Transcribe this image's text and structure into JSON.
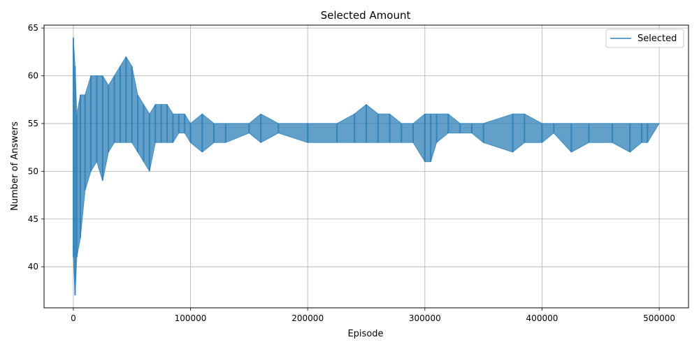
{
  "chart_data": {
    "type": "line",
    "title": "Selected Amount",
    "xlabel": "Episode",
    "ylabel": "Number of Answers",
    "xlim": [
      -25000,
      525000
    ],
    "ylim": [
      35.7,
      65.3
    ],
    "xticks": [
      0,
      100000,
      200000,
      300000,
      400000,
      500000
    ],
    "xtick_labels": [
      "0",
      "100000",
      "200000",
      "300000",
      "400000",
      "500000"
    ],
    "yticks": [
      40,
      45,
      50,
      55,
      60,
      65
    ],
    "ytick_labels": [
      "40",
      "45",
      "50",
      "55",
      "60",
      "65"
    ],
    "grid": true,
    "legend": {
      "position": "top-right",
      "entries": [
        "Selected"
      ]
    },
    "line_color": "#1f77b4",
    "series": [
      {
        "name": "Selected",
        "x": [
          0,
          1500,
          3000,
          6000,
          10000,
          15000,
          20000,
          25000,
          30000,
          35000,
          40000,
          45000,
          50000,
          55000,
          60000,
          65000,
          70000,
          75000,
          80000,
          85000,
          90000,
          95000,
          100000,
          110000,
          120000,
          130000,
          150000,
          160000,
          175000,
          200000,
          225000,
          240000,
          250000,
          260000,
          270000,
          280000,
          290000,
          300000,
          305000,
          310000,
          320000,
          330000,
          340000,
          350000,
          375000,
          385000,
          400000,
          410000,
          425000,
          440000,
          460000,
          475000,
          485000,
          490000,
          500000
        ],
        "min": [
          41,
          37,
          41,
          43,
          48,
          50,
          51,
          49,
          52,
          53,
          53,
          53,
          53,
          52,
          51,
          50,
          53,
          53,
          53,
          53,
          54,
          54,
          53,
          52,
          53,
          53,
          54,
          53,
          54,
          53,
          53,
          53,
          53,
          53,
          53,
          53,
          53,
          51,
          51,
          53,
          54,
          54,
          54,
          53,
          52,
          53,
          53,
          54,
          52,
          53,
          53,
          52,
          53,
          53,
          55
        ],
        "max": [
          64,
          61,
          56,
          58,
          58,
          60,
          60,
          60,
          59,
          60,
          61,
          62,
          61,
          58,
          57,
          56,
          57,
          57,
          57,
          56,
          56,
          56,
          55,
          56,
          55,
          55,
          55,
          56,
          55,
          55,
          55,
          56,
          57,
          56,
          56,
          55,
          55,
          56,
          56,
          56,
          56,
          55,
          55,
          55,
          56,
          56,
          55,
          55,
          55,
          55,
          55,
          55,
          55,
          55,
          55
        ]
      }
    ]
  }
}
